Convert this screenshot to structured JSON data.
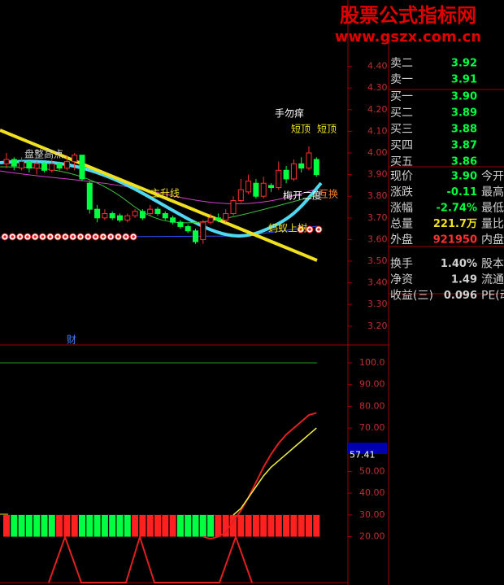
{
  "watermark": {
    "title": "股票公式指标网",
    "url": "www.gszx.com.cn"
  },
  "price_chart": {
    "yticks": [
      {
        "value": 4.4,
        "label": "4.40"
      },
      {
        "value": 4.3,
        "label": "4.30"
      },
      {
        "value": 4.2,
        "label": "4.20"
      },
      {
        "value": 4.1,
        "label": "4.10"
      },
      {
        "value": 4.0,
        "label": "4.00"
      },
      {
        "value": 3.9,
        "label": "3.90"
      },
      {
        "value": 3.8,
        "label": "3.80"
      },
      {
        "value": 3.7,
        "label": "3.70"
      },
      {
        "value": 3.6,
        "label": "3.60"
      },
      {
        "value": 3.5,
        "label": "3.50"
      },
      {
        "value": 3.4,
        "label": "3.40"
      },
      {
        "value": 3.3,
        "label": "3.30"
      },
      {
        "value": 3.2,
        "label": "3.20"
      }
    ],
    "candles": [
      [
        3.95,
        3.97,
        4.0,
        3.93
      ],
      [
        3.97,
        3.94,
        3.98,
        3.92
      ],
      [
        3.93,
        3.96,
        3.98,
        3.92
      ],
      [
        3.96,
        3.93,
        3.97,
        3.91
      ],
      [
        3.93,
        3.95,
        3.96,
        3.9
      ],
      [
        3.95,
        3.92,
        3.96,
        3.91
      ],
      [
        3.92,
        3.95,
        3.97,
        3.91
      ],
      [
        3.95,
        3.93,
        3.96,
        3.92
      ],
      [
        3.93,
        3.96,
        3.99,
        3.92
      ],
      [
        3.96,
        3.99,
        4.0,
        3.92
      ],
      [
        3.99,
        3.88,
        3.99,
        3.87
      ],
      [
        3.86,
        3.74,
        3.87,
        3.72
      ],
      [
        3.74,
        3.7,
        3.76,
        3.68
      ],
      [
        3.7,
        3.72,
        3.74,
        3.69
      ],
      [
        3.72,
        3.7,
        3.73,
        3.69
      ],
      [
        3.71,
        3.69,
        3.72,
        3.68
      ],
      [
        3.69,
        3.71,
        3.72,
        3.68
      ],
      [
        3.71,
        3.73,
        3.74,
        3.7
      ],
      [
        3.73,
        3.7,
        3.74,
        3.69
      ],
      [
        3.72,
        3.74,
        3.76,
        3.71
      ],
      [
        3.74,
        3.72,
        3.75,
        3.71
      ],
      [
        3.72,
        3.7,
        3.73,
        3.69
      ],
      [
        3.7,
        3.68,
        3.71,
        3.67
      ],
      [
        3.68,
        3.66,
        3.69,
        3.65
      ],
      [
        3.66,
        3.64,
        3.67,
        3.63
      ],
      [
        3.64,
        3.59,
        3.65,
        3.58
      ],
      [
        3.6,
        3.68,
        3.69,
        3.58
      ],
      [
        3.68,
        3.7,
        3.72,
        3.67
      ],
      [
        3.7,
        3.69,
        3.72,
        3.68
      ],
      [
        3.69,
        3.72,
        3.74,
        3.68
      ],
      [
        3.72,
        3.78,
        3.8,
        3.71
      ],
      [
        3.78,
        3.83,
        3.88,
        3.77
      ],
      [
        3.82,
        3.87,
        3.9,
        3.81
      ],
      [
        3.86,
        3.8,
        3.88,
        3.79
      ],
      [
        3.8,
        3.86,
        3.89,
        3.79
      ],
      [
        3.85,
        3.84,
        3.86,
        3.82
      ],
      [
        3.84,
        3.92,
        3.96,
        3.83
      ],
      [
        3.92,
        3.88,
        3.94,
        3.86
      ],
      [
        3.88,
        3.95,
        3.97,
        3.87
      ],
      [
        3.95,
        3.93,
        3.98,
        3.91
      ],
      [
        3.93,
        4.0,
        4.03,
        3.92
      ],
      [
        3.97,
        3.9,
        3.98,
        3.89
      ]
    ],
    "annotations": [
      "盘整高点",
      "主升线",
      "手勿痒",
      "短顶",
      "短顶",
      "梅开二度",
      "互换",
      "蚂蚁上树",
      "财"
    ]
  },
  "indicator": {
    "yticks": [
      {
        "value": 100,
        "label": "100.0"
      },
      {
        "value": 90,
        "label": "90.00"
      },
      {
        "value": 80,
        "label": "80.00"
      },
      {
        "value": 70,
        "label": "70.00"
      },
      {
        "value": 50,
        "label": "50.00"
      },
      {
        "value": 40,
        "label": "40.00"
      },
      {
        "value": 30,
        "label": "30.00"
      },
      {
        "value": 20,
        "label": "20.00"
      }
    ],
    "current": 57.41,
    "signals": [
      1,
      0,
      0,
      0,
      0,
      0,
      0,
      1,
      1,
      1,
      0,
      0,
      0,
      0,
      0,
      0,
      0,
      1,
      1,
      1,
      1,
      1,
      1,
      0,
      0,
      0,
      0,
      0,
      1,
      1,
      1,
      1,
      1,
      1,
      1,
      1,
      1,
      1,
      1,
      1,
      1,
      1
    ],
    "red_line": [
      null,
      null,
      null,
      null,
      null,
      null,
      null,
      null,
      null,
      null,
      null,
      null,
      null,
      null,
      null,
      null,
      null,
      null,
      null,
      null,
      null,
      null,
      null,
      null,
      null,
      null,
      20,
      19,
      20,
      22,
      27,
      32,
      38,
      45,
      52,
      58,
      63,
      67,
      70,
      73,
      76,
      77
    ],
    "yellow_line": [
      null,
      null,
      null,
      null,
      null,
      null,
      null,
      null,
      null,
      null,
      null,
      null,
      null,
      null,
      null,
      null,
      null,
      null,
      null,
      null,
      null,
      null,
      null,
      null,
      null,
      null,
      null,
      null,
      null,
      null,
      30,
      33,
      38,
      43,
      48,
      52,
      55,
      58,
      61,
      64,
      67,
      70
    ]
  },
  "order_book": [
    {
      "label": "卖二",
      "price": "3.92"
    },
    {
      "label": "卖一",
      "price": "3.91"
    },
    {
      "label": "买一",
      "price": "3.90"
    },
    {
      "label": "买二",
      "price": "3.89"
    },
    {
      "label": "买三",
      "price": "3.88"
    },
    {
      "label": "买四",
      "price": "3.87"
    },
    {
      "label": "买五",
      "price": "3.86"
    }
  ],
  "quote": [
    {
      "label": "现价",
      "value": "3.90",
      "label2": "今开"
    },
    {
      "label": "涨跌",
      "value": "-0.11",
      "label2": "最高"
    },
    {
      "label": "涨幅",
      "value": "-2.74%",
      "label2": "最低"
    },
    {
      "label": "总量",
      "value": "221.7万",
      "label2": "量比"
    },
    {
      "label": "外盘",
      "value": "921950",
      "label2": "内盘"
    },
    {
      "label": "换手",
      "value": "1.40%",
      "label2": "股本"
    },
    {
      "label": "净资",
      "value": "1.49",
      "label2": "流通"
    },
    {
      "label": "收益(三)",
      "value": "0.096",
      "label2": "PE(动)"
    }
  ]
}
